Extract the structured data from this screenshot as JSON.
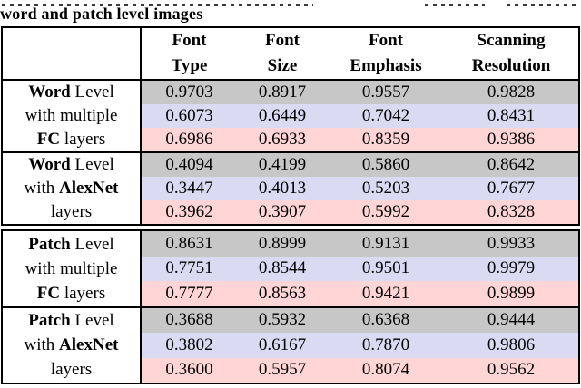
{
  "caption": {
    "line": "word and patch level images"
  },
  "colors": {
    "row_gray": "#c7c7c7",
    "row_blue": "#dadaf3",
    "row_pink": "#ffd5d5",
    "border": "#000000"
  },
  "header": {
    "col1": "Font\nType",
    "col2": "Font\nSize",
    "col3": "Font\nEmphasis",
    "col4": "Scanning\nResolution"
  },
  "tables": [
    {
      "groups": [
        {
          "label": {
            "l1pre": "",
            "l1bold": "Word",
            "l1post": " Level",
            "l2pre": "with multiple",
            "l2bold": "",
            "l2post": "",
            "l3pre": "",
            "l3bold": "FC",
            "l3post": " layers"
          },
          "rows": [
            [
              "0.9703",
              "0.8917",
              "0.9557",
              "0.9828"
            ],
            [
              "0.6073",
              "0.6449",
              "0.7042",
              "0.8431"
            ],
            [
              "0.6986",
              "0.6933",
              "0.8359",
              "0.9386"
            ]
          ]
        },
        {
          "label": {
            "l1pre": "",
            "l1bold": "Word",
            "l1post": " Level",
            "l2pre": "with ",
            "l2bold": "AlexNet",
            "l2post": "",
            "l3pre": "layers",
            "l3bold": "",
            "l3post": ""
          },
          "rows": [
            [
              "0.4094",
              "0.4199",
              "0.5860",
              "0.8642"
            ],
            [
              "0.3447",
              "0.4013",
              "0.5203",
              "0.7677"
            ],
            [
              "0.3962",
              "0.3907",
              "0.5992",
              "0.8328"
            ]
          ]
        }
      ]
    },
    {
      "groups": [
        {
          "label": {
            "l1pre": "",
            "l1bold": "Patch",
            "l1post": " Level",
            "l2pre": "with multiple",
            "l2bold": "",
            "l2post": "",
            "l3pre": "",
            "l3bold": "FC",
            "l3post": " layers"
          },
          "rows": [
            [
              "0.8631",
              "0.8999",
              "0.9131",
              "0.9933"
            ],
            [
              "0.7751",
              "0.8544",
              "0.9501",
              "0.9979"
            ],
            [
              "0.7777",
              "0.8563",
              "0.9421",
              "0.9899"
            ]
          ]
        },
        {
          "label": {
            "l1pre": "",
            "l1bold": "Patch",
            "l1post": " Level",
            "l2pre": "with ",
            "l2bold": "AlexNet",
            "l2post": "",
            "l3pre": "layers",
            "l3bold": "",
            "l3post": ""
          },
          "rows": [
            [
              "0.3688",
              "0.5932",
              "0.6368",
              "0.9444"
            ],
            [
              "0.3802",
              "0.6167",
              "0.7870",
              "0.9806"
            ],
            [
              "0.3600",
              "0.5957",
              "0.8074",
              "0.9562"
            ]
          ]
        }
      ]
    }
  ]
}
